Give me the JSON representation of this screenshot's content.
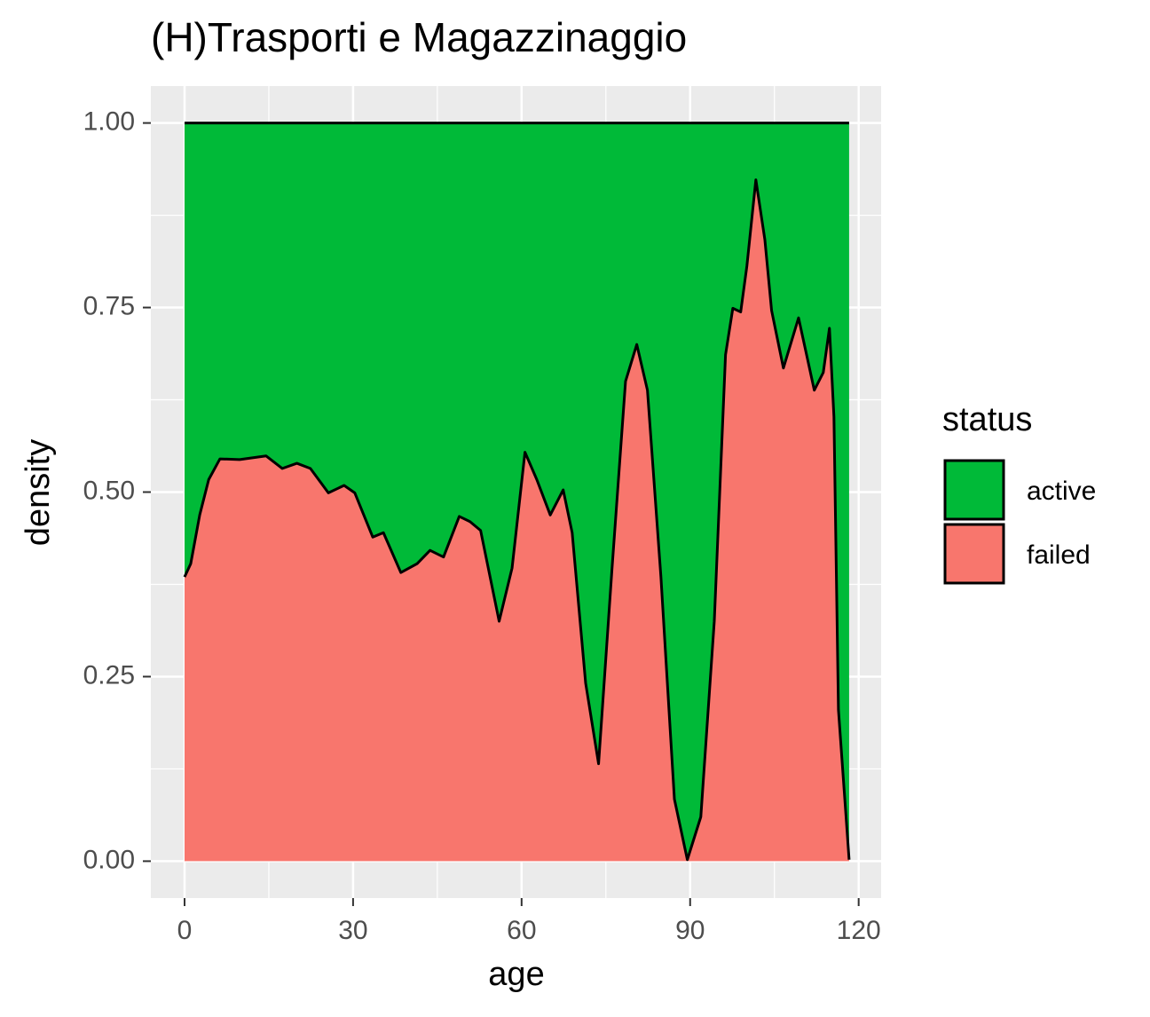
{
  "chart_data": {
    "type": "area",
    "stacked": true,
    "title": "(H)Trasporti e Magazzinaggio",
    "x_label": "age",
    "y_label": "density",
    "legend_title": "status",
    "legend_position": "right",
    "grid": true,
    "minor_grid": true,
    "x": [
      0,
      1.1,
      2.7,
      4.3,
      6.3,
      9.8,
      14.5,
      17.4,
      20,
      22.4,
      25.6,
      28.4,
      30.3,
      33.5,
      35.4,
      38.5,
      41.4,
      43.7,
      46.1,
      48.9,
      50.8,
      52.7,
      56,
      58.3,
      60.6,
      62.7,
      65.1,
      67.4,
      69,
      71.4,
      73.7,
      76.1,
      78.5,
      80.5,
      82.4,
      84.8,
      87.2,
      89.5,
      91.9,
      94.3,
      96.3,
      97.6,
      99,
      100.1,
      101.7,
      103.3,
      104.5,
      106.6,
      109.3,
      112.1,
      113.7,
      114.8,
      115.6,
      116.4,
      118.3
    ],
    "series": [
      {
        "name": "active",
        "color": "#00BA38",
        "values": [
          0.615,
          0.597,
          0.531,
          0.483,
          0.455,
          0.456,
          0.451,
          0.468,
          0.461,
          0.468,
          0.501,
          0.491,
          0.501,
          0.561,
          0.555,
          0.609,
          0.597,
          0.579,
          0.588,
          0.533,
          0.54,
          0.552,
          0.675,
          0.603,
          0.446,
          0.483,
          0.531,
          0.497,
          0.555,
          0.759,
          0.868,
          0.603,
          0.35,
          0.3,
          0.362,
          0.615,
          0.916,
          0.998,
          0.94,
          0.675,
          0.314,
          0.251,
          0.256,
          0.194,
          0.077,
          0.158,
          0.254,
          0.332,
          0.264,
          0.362,
          0.338,
          0.278,
          0.398,
          0.795,
          0.998
        ]
      },
      {
        "name": "failed",
        "color": "#F8766D",
        "values": [
          0.385,
          0.403,
          0.469,
          0.517,
          0.545,
          0.544,
          0.549,
          0.532,
          0.539,
          0.532,
          0.499,
          0.509,
          0.499,
          0.439,
          0.445,
          0.391,
          0.403,
          0.421,
          0.412,
          0.467,
          0.46,
          0.448,
          0.325,
          0.397,
          0.554,
          0.517,
          0.469,
          0.503,
          0.445,
          0.241,
          0.132,
          0.397,
          0.65,
          0.7,
          0.638,
          0.385,
          0.084,
          0.002,
          0.06,
          0.325,
          0.686,
          0.749,
          0.744,
          0.806,
          0.923,
          0.842,
          0.746,
          0.668,
          0.736,
          0.638,
          0.662,
          0.722,
          0.602,
          0.205,
          0.002
        ]
      }
    ],
    "xlim": [
      -6,
      124
    ],
    "xticks": [
      0,
      30,
      60,
      90,
      120
    ],
    "ylim": [
      -0.05,
      1.05
    ],
    "yticks": [
      {
        "value": 0,
        "label": "0.00"
      },
      {
        "value": 0.25,
        "label": "0.25"
      },
      {
        "value": 0.5,
        "label": "0.50"
      },
      {
        "value": 0.75,
        "label": "0.75"
      },
      {
        "value": 1,
        "label": "1.00"
      }
    ]
  }
}
